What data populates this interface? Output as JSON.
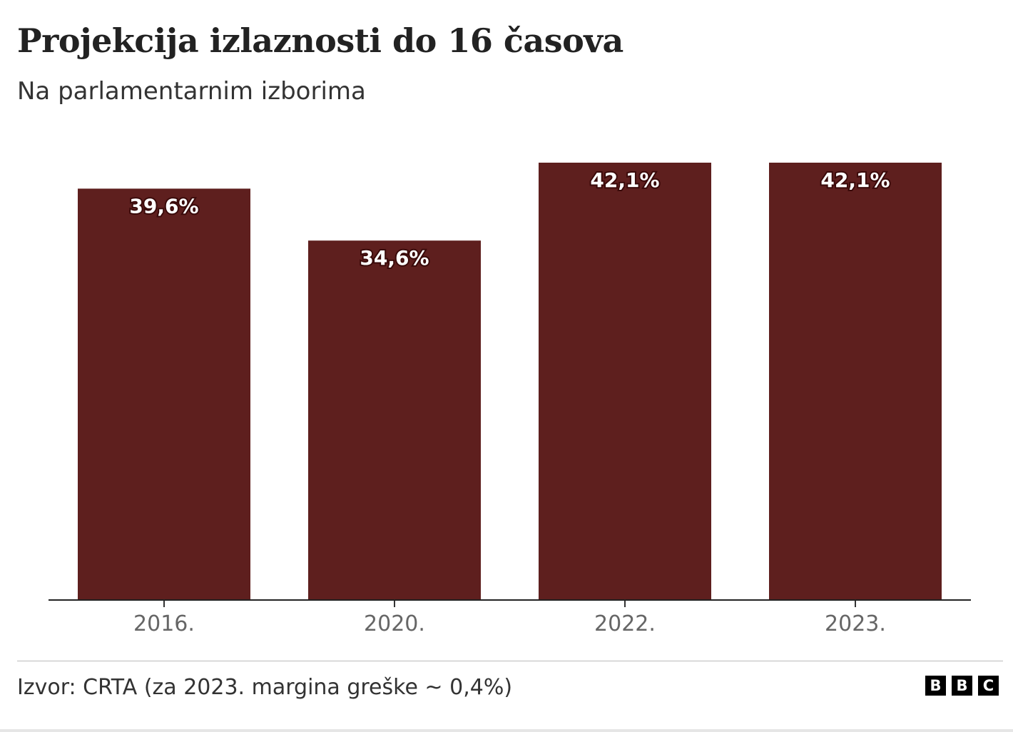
{
  "chart_data": {
    "type": "bar",
    "title": "Projekcija izlaznosti do 16 časova",
    "subtitle": "Na parlamentarnim izborima",
    "categories": [
      "2016.",
      "2020.",
      "2022.",
      "2023."
    ],
    "values": [
      39.6,
      34.6,
      42.1,
      42.1
    ],
    "data_labels": [
      "39,6%",
      "34,6%",
      "42,1%",
      "42,1%"
    ],
    "ylim": [
      0,
      42.1
    ],
    "grid": false,
    "bar_color": "#5e1f1e",
    "source": "Izvor: CRTA (za 2023. margina greške ~ 0,4%)"
  },
  "logo": {
    "text": "BBC",
    "letters": [
      "B",
      "B",
      "C"
    ]
  }
}
